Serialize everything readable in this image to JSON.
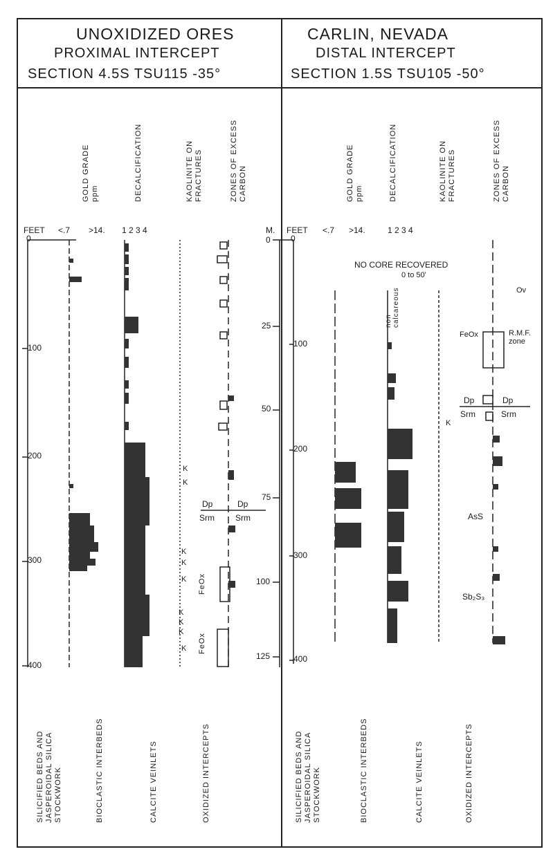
{
  "header": {
    "left_title": "UNOXIDIZED ORES",
    "right_title": "CARLIN, NEVADA",
    "left_sub": "PROXIMAL INTERCEPT",
    "right_sub": "DISTAL INTERCEPT",
    "left_section": "SECTION 4.5S TSU115 -35°",
    "right_section": "SECTION 1.5S TSU105 -50°"
  },
  "columns": {
    "gold": "GOLD GRADE\nppm",
    "decal": "DECALCIFICATION",
    "kaol": "KAOLINITE ON\nFRACTURES",
    "carbon": "ZONES OF EXCESS\nCARBON"
  },
  "scale": {
    "feet": "FEET",
    "m": "M.",
    "lt": "<.7",
    "gt": ">14.",
    "decal_scale": "1 2 3 4",
    "feet_ticks": [
      "0",
      "100",
      "200",
      "300",
      "400"
    ],
    "m_ticks": [
      "0",
      "25",
      "50",
      "75",
      "100",
      "125"
    ]
  },
  "annotations": {
    "no_core": "NO CORE RECOVERED",
    "no_core_range": "0 to 50'",
    "non_calc": "non\ncalcareous",
    "ov": "Ov",
    "feox": "FeOx",
    "rmf": "R.M.F.\nzone",
    "dp": "Dp",
    "srm": "Srm",
    "ass": "AsS",
    "sb": "Sb₂S₃",
    "k": "K"
  },
  "footer": {
    "silic": "SILICIFIED BEDS AND\nJASPEROIDAL SILICA\nSTOCKWORK",
    "bioclastic": "BIOCLASTIC INTERBEDS",
    "calcite": "CALCITE VEINLETS",
    "oxidized": "OXIDIZED INTERCEPTS"
  }
}
